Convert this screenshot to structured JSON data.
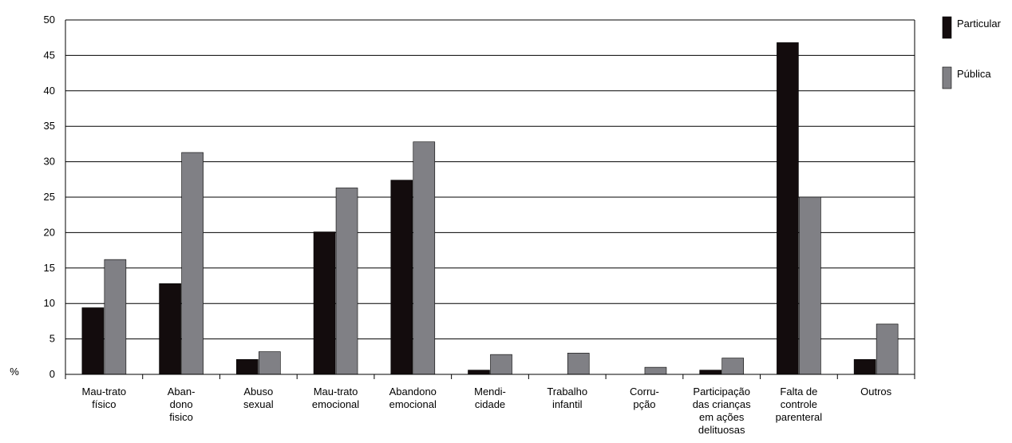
{
  "chart_data": {
    "type": "bar",
    "title": "",
    "xlabel": "",
    "ylabel": "%",
    "ylim": [
      0,
      50
    ],
    "yticks": [
      0,
      5,
      10,
      15,
      20,
      25,
      30,
      35,
      40,
      45,
      50
    ],
    "grid": true,
    "legend_position": "top-right",
    "categories": [
      [
        "Mau-trato",
        "físico"
      ],
      [
        "Aban-",
        "dono",
        "fisico"
      ],
      [
        "Abuso",
        "sexual"
      ],
      [
        "Mau-trato",
        "emocional"
      ],
      [
        "Abandono",
        "emocional"
      ],
      [
        "Mendi-",
        "cidade"
      ],
      [
        "Trabalho",
        "infantil"
      ],
      [
        "Corru-",
        "pção"
      ],
      [
        "Participação",
        "das crianças",
        "em ações",
        "delituosas"
      ],
      [
        "Falta de",
        "controle",
        "parenteral"
      ],
      [
        "Outros"
      ]
    ],
    "series": [
      {
        "name": "Particular",
        "color": "#130c0d",
        "values": [
          9.4,
          12.8,
          2.1,
          20.1,
          27.4,
          0.6,
          0,
          0,
          0.6,
          46.8,
          2.1
        ]
      },
      {
        "name": "Pública",
        "color": "#808085",
        "values": [
          16.2,
          31.3,
          3.2,
          26.3,
          32.8,
          2.8,
          3.0,
          1.0,
          2.3,
          25.0,
          7.1
        ]
      }
    ]
  }
}
